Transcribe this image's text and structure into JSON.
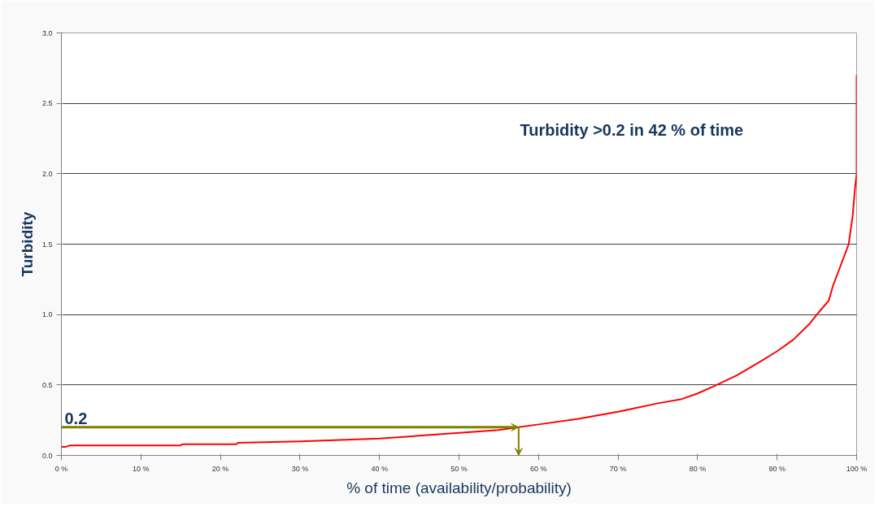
{
  "chart_data": {
    "type": "line",
    "x": [
      0,
      0.5,
      1,
      15,
      15.2,
      22,
      22.2,
      30,
      40,
      50,
      55,
      57.5,
      60,
      65,
      70,
      75,
      78,
      80,
      82,
      85,
      88,
      90,
      92,
      94,
      95,
      96.5,
      97,
      98,
      99,
      99.5,
      99.8,
      100,
      100
    ],
    "series": [
      {
        "color": "#ff0000",
        "values": [
          0.06,
          0.06,
          0.07,
          0.07,
          0.08,
          0.08,
          0.09,
          0.1,
          0.12,
          0.16,
          0.18,
          0.2,
          0.22,
          0.26,
          0.31,
          0.37,
          0.4,
          0.44,
          0.49,
          0.57,
          0.67,
          0.74,
          0.82,
          0.93,
          1.0,
          1.1,
          1.2,
          1.35,
          1.5,
          1.7,
          1.9,
          2.0,
          2.7
        ]
      }
    ],
    "xlabel": "% of time (availability/probability)",
    "ylabel": "Turbidity",
    "xlim": [
      0,
      100
    ],
    "ylim": [
      0,
      3
    ],
    "xticks": [
      {
        "value": 0,
        "label": "0 %"
      },
      {
        "value": 10,
        "label": "10 %"
      },
      {
        "value": 20,
        "label": "20 %"
      },
      {
        "value": 30,
        "label": "30 %"
      },
      {
        "value": 40,
        "label": "40 %"
      },
      {
        "value": 50,
        "label": "50 %"
      },
      {
        "value": 60,
        "label": "60 %"
      },
      {
        "value": 70,
        "label": "70 %"
      },
      {
        "value": 80,
        "label": "80 %"
      },
      {
        "value": 90,
        "label": "90 %"
      },
      {
        "value": 100,
        "label": "100 %"
      }
    ],
    "yticks": [
      {
        "value": 0,
        "label": "0.0"
      },
      {
        "value": 0.5,
        "label": "0.5"
      },
      {
        "value": 1,
        "label": "1.0"
      },
      {
        "value": 1.5,
        "label": "1.5"
      },
      {
        "value": 2,
        "label": "2.0"
      },
      {
        "value": 2.5,
        "label": "2.5"
      },
      {
        "value": 3,
        "label": "3.0"
      }
    ],
    "grid": "y",
    "ref_lines": [
      {
        "axis": "y",
        "value": 0.2,
        "label": "0.2",
        "color": "#7f7f00"
      }
    ],
    "annotations": [
      "Turbidity >0.2  in 42 % of time"
    ]
  }
}
